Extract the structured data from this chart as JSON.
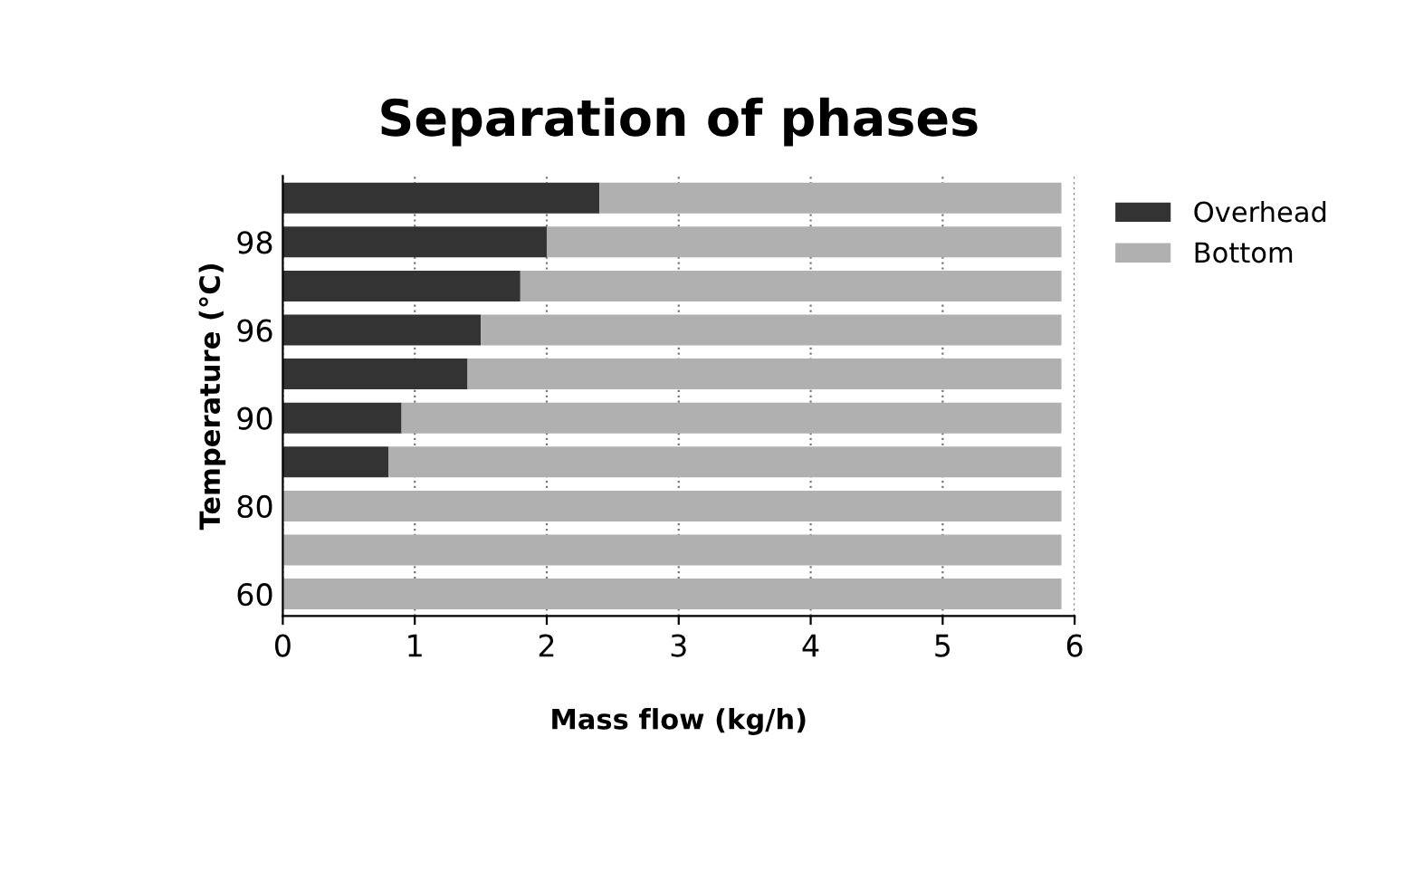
{
  "chart_data": {
    "type": "bar",
    "orientation": "horizontal",
    "stacked": true,
    "title": "Separation of phases",
    "xlabel": "Mass flow (kg/h)",
    "ylabel": "Temperature (°C)",
    "categories": [
      null,
      "98",
      null,
      "96",
      null,
      "90",
      null,
      "80",
      null,
      "60"
    ],
    "series": [
      {
        "name": "Overhead",
        "color": "#333333",
        "values": [
          2.4,
          2.0,
          1.8,
          1.5,
          1.4,
          0.9,
          0.8,
          0,
          0,
          0
        ]
      },
      {
        "name": "Bottom",
        "color": "#b0b0b0",
        "values": [
          3.5,
          3.9,
          4.1,
          4.4,
          4.5,
          5.0,
          5.1,
          5.9,
          5.9,
          5.9
        ]
      }
    ],
    "xlim": [
      0,
      6
    ],
    "xticks": [
      0,
      1,
      2,
      3,
      4,
      5,
      6
    ],
    "grid": "x",
    "legend": "top right"
  }
}
